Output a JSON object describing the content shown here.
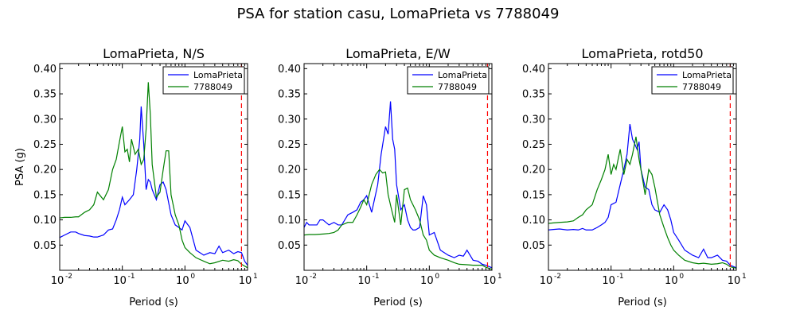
{
  "figure": {
    "title": "PSA for station casu, LomaPrieta vs 7788049"
  },
  "colors": {
    "series_1": "#0000ff",
    "series_2": "#008000",
    "reference_line": "#ff0000",
    "axes": "#000000"
  },
  "chart_data": [
    {
      "type": "line",
      "title": "LomaPrieta, N/S",
      "xlabel": "Period (s)",
      "ylabel": "PSA (g)",
      "xscale": "log",
      "xlim": [
        0.01,
        10
      ],
      "ylim": [
        0.0,
        0.41
      ],
      "xticks": [
        0.01,
        0.1,
        1,
        10
      ],
      "xtick_labels": [
        [
          "10",
          "-2"
        ],
        [
          "10",
          "-1"
        ],
        [
          "10",
          "0"
        ],
        [
          "10",
          "1"
        ]
      ],
      "yticks": [
        0.05,
        0.1,
        0.15,
        0.2,
        0.25,
        0.3,
        0.35,
        0.4
      ],
      "ytick_labels": [
        "0.05",
        "0.10",
        "0.15",
        "0.20",
        "0.25",
        "0.30",
        "0.35",
        "0.40"
      ],
      "legend_position": "top-right",
      "reference_x": 8.0,
      "series": [
        {
          "name": "LomaPrieta",
          "x": [
            0.01,
            0.012,
            0.015,
            0.018,
            0.02,
            0.025,
            0.03,
            0.035,
            0.04,
            0.05,
            0.06,
            0.07,
            0.08,
            0.09,
            0.1,
            0.11,
            0.13,
            0.15,
            0.17,
            0.19,
            0.2,
            0.22,
            0.24,
            0.26,
            0.28,
            0.3,
            0.35,
            0.4,
            0.45,
            0.5,
            0.6,
            0.7,
            0.8,
            0.9,
            1.0,
            1.2,
            1.5,
            2.0,
            2.5,
            3.0,
            3.5,
            4.0,
            5.0,
            6.0,
            7.0,
            8.0,
            9.0,
            10.0
          ],
          "values": [
            0.065,
            0.07,
            0.076,
            0.076,
            0.073,
            0.069,
            0.068,
            0.066,
            0.066,
            0.07,
            0.08,
            0.082,
            0.1,
            0.12,
            0.145,
            0.13,
            0.14,
            0.15,
            0.2,
            0.26,
            0.325,
            0.25,
            0.16,
            0.18,
            0.175,
            0.16,
            0.14,
            0.17,
            0.175,
            0.16,
            0.11,
            0.09,
            0.085,
            0.08,
            0.098,
            0.085,
            0.04,
            0.03,
            0.035,
            0.033,
            0.048,
            0.035,
            0.04,
            0.033,
            0.037,
            0.035,
            0.018,
            0.01
          ]
        },
        {
          "name": "7788049",
          "x": [
            0.01,
            0.012,
            0.015,
            0.018,
            0.02,
            0.025,
            0.03,
            0.035,
            0.04,
            0.05,
            0.06,
            0.07,
            0.08,
            0.09,
            0.1,
            0.11,
            0.12,
            0.13,
            0.14,
            0.16,
            0.18,
            0.2,
            0.22,
            0.24,
            0.26,
            0.28,
            0.3,
            0.35,
            0.4,
            0.45,
            0.5,
            0.55,
            0.6,
            0.7,
            0.8,
            0.9,
            1.0,
            1.2,
            1.5,
            2.0,
            2.5,
            3.0,
            4.0,
            5.0,
            6.0,
            7.0,
            8.0,
            10.0
          ],
          "values": [
            0.104,
            0.105,
            0.105,
            0.106,
            0.106,
            0.115,
            0.12,
            0.13,
            0.155,
            0.14,
            0.16,
            0.2,
            0.22,
            0.255,
            0.285,
            0.235,
            0.24,
            0.215,
            0.26,
            0.23,
            0.24,
            0.21,
            0.22,
            0.28,
            0.373,
            0.31,
            0.21,
            0.145,
            0.155,
            0.2,
            0.237,
            0.237,
            0.15,
            0.11,
            0.09,
            0.06,
            0.045,
            0.035,
            0.025,
            0.018,
            0.013,
            0.015,
            0.02,
            0.018,
            0.021,
            0.019,
            0.012,
            0.005
          ]
        }
      ]
    },
    {
      "type": "line",
      "title": "LomaPrieta, E/W",
      "xlabel": "Period (s)",
      "ylabel": "",
      "xscale": "log",
      "xlim": [
        0.01,
        10
      ],
      "ylim": [
        0.0,
        0.41
      ],
      "xticks": [
        0.01,
        0.1,
        1,
        10
      ],
      "xtick_labels": [
        [
          "10",
          "-2"
        ],
        [
          "10",
          "-1"
        ],
        [
          "10",
          "0"
        ],
        [
          "10",
          "1"
        ]
      ],
      "yticks": [
        0.05,
        0.1,
        0.15,
        0.2,
        0.25,
        0.3,
        0.35,
        0.4
      ],
      "ytick_labels": [
        "0.05",
        "0.10",
        "0.15",
        "0.20",
        "0.25",
        "0.30",
        "0.35",
        "0.40"
      ],
      "legend_position": "top-right",
      "reference_x": 8.5,
      "series": [
        {
          "name": "LomaPrieta",
          "x": [
            0.01,
            0.011,
            0.012,
            0.014,
            0.016,
            0.018,
            0.02,
            0.025,
            0.03,
            0.035,
            0.04,
            0.05,
            0.06,
            0.07,
            0.08,
            0.09,
            0.1,
            0.12,
            0.15,
            0.17,
            0.2,
            0.22,
            0.24,
            0.26,
            0.28,
            0.3,
            0.35,
            0.4,
            0.45,
            0.5,
            0.55,
            0.6,
            0.7,
            0.8,
            0.9,
            1.0,
            1.2,
            1.5,
            2.0,
            2.5,
            3.0,
            3.5,
            4.0,
            5.0,
            6.0,
            7.0,
            8.0,
            10.0
          ],
          "values": [
            0.085,
            0.095,
            0.09,
            0.09,
            0.09,
            0.1,
            0.1,
            0.09,
            0.095,
            0.09,
            0.09,
            0.11,
            0.115,
            0.12,
            0.135,
            0.14,
            0.148,
            0.115,
            0.17,
            0.23,
            0.285,
            0.27,
            0.335,
            0.26,
            0.24,
            0.17,
            0.12,
            0.13,
            0.1,
            0.085,
            0.08,
            0.08,
            0.085,
            0.148,
            0.13,
            0.07,
            0.075,
            0.04,
            0.03,
            0.025,
            0.03,
            0.028,
            0.04,
            0.02,
            0.018,
            0.012,
            0.01,
            0.005
          ]
        },
        {
          "name": "7788049",
          "x": [
            0.01,
            0.012,
            0.015,
            0.02,
            0.025,
            0.03,
            0.035,
            0.04,
            0.05,
            0.06,
            0.07,
            0.08,
            0.09,
            0.1,
            0.12,
            0.14,
            0.16,
            0.18,
            0.2,
            0.22,
            0.25,
            0.28,
            0.3,
            0.35,
            0.4,
            0.45,
            0.5,
            0.6,
            0.7,
            0.8,
            0.9,
            1.0,
            1.2,
            1.5,
            2.0,
            2.5,
            3.0,
            4.0,
            5.0,
            6.0,
            7.0,
            8.0,
            10.0
          ],
          "values": [
            0.07,
            0.071,
            0.071,
            0.072,
            0.073,
            0.075,
            0.08,
            0.09,
            0.095,
            0.095,
            0.11,
            0.125,
            0.14,
            0.13,
            0.17,
            0.19,
            0.2,
            0.193,
            0.195,
            0.15,
            0.12,
            0.095,
            0.15,
            0.09,
            0.16,
            0.163,
            0.14,
            0.12,
            0.1,
            0.07,
            0.06,
            0.04,
            0.03,
            0.025,
            0.02,
            0.015,
            0.012,
            0.011,
            0.01,
            0.01,
            0.01,
            0.006,
            0.002
          ]
        }
      ]
    },
    {
      "type": "line",
      "title": "LomaPrieta, rotd50",
      "xlabel": "Period (s)",
      "ylabel": "",
      "xscale": "log",
      "xlim": [
        0.01,
        10
      ],
      "ylim": [
        0.0,
        0.41
      ],
      "xticks": [
        0.01,
        0.1,
        1,
        10
      ],
      "xtick_labels": [
        [
          "10",
          "-2"
        ],
        [
          "10",
          "-1"
        ],
        [
          "10",
          "0"
        ],
        [
          "10",
          "1"
        ]
      ],
      "yticks": [
        0.05,
        0.1,
        0.15,
        0.2,
        0.25,
        0.3,
        0.35,
        0.4
      ],
      "ytick_labels": [
        "0.05",
        "0.10",
        "0.15",
        "0.20",
        "0.25",
        "0.30",
        "0.35",
        "0.40"
      ],
      "legend_position": "top-right",
      "reference_x": 8.0,
      "series": [
        {
          "name": "LomaPrieta",
          "x": [
            0.01,
            0.012,
            0.015,
            0.02,
            0.025,
            0.03,
            0.035,
            0.04,
            0.05,
            0.06,
            0.07,
            0.08,
            0.09,
            0.1,
            0.12,
            0.14,
            0.16,
            0.18,
            0.2,
            0.22,
            0.24,
            0.26,
            0.28,
            0.3,
            0.35,
            0.4,
            0.45,
            0.5,
            0.6,
            0.7,
            0.8,
            0.9,
            1.0,
            1.2,
            1.5,
            2.0,
            2.5,
            3.0,
            3.5,
            4.0,
            5.0,
            6.0,
            7.0,
            8.0,
            10.0
          ],
          "values": [
            0.08,
            0.081,
            0.082,
            0.08,
            0.081,
            0.08,
            0.083,
            0.08,
            0.08,
            0.085,
            0.09,
            0.095,
            0.105,
            0.13,
            0.135,
            0.17,
            0.2,
            0.23,
            0.29,
            0.26,
            0.25,
            0.24,
            0.255,
            0.2,
            0.165,
            0.16,
            0.13,
            0.12,
            0.115,
            0.13,
            0.12,
            0.1,
            0.075,
            0.06,
            0.04,
            0.03,
            0.025,
            0.042,
            0.025,
            0.025,
            0.03,
            0.02,
            0.018,
            0.01,
            0.005
          ]
        },
        {
          "name": "7788049",
          "x": [
            0.01,
            0.012,
            0.015,
            0.02,
            0.025,
            0.03,
            0.035,
            0.04,
            0.05,
            0.06,
            0.07,
            0.08,
            0.09,
            0.1,
            0.11,
            0.12,
            0.14,
            0.16,
            0.18,
            0.2,
            0.22,
            0.25,
            0.28,
            0.3,
            0.35,
            0.4,
            0.45,
            0.5,
            0.6,
            0.7,
            0.8,
            0.9,
            1.0,
            1.2,
            1.5,
            2.0,
            2.5,
            3.0,
            4.0,
            5.0,
            6.0,
            7.0,
            8.0,
            10.0
          ],
          "values": [
            0.093,
            0.094,
            0.095,
            0.096,
            0.098,
            0.105,
            0.11,
            0.12,
            0.13,
            0.16,
            0.18,
            0.2,
            0.23,
            0.19,
            0.21,
            0.2,
            0.24,
            0.19,
            0.22,
            0.21,
            0.23,
            0.265,
            0.22,
            0.2,
            0.15,
            0.2,
            0.19,
            0.165,
            0.11,
            0.085,
            0.065,
            0.05,
            0.04,
            0.03,
            0.02,
            0.015,
            0.013,
            0.014,
            0.012,
            0.013,
            0.015,
            0.012,
            0.007,
            0.004
          ]
        }
      ]
    }
  ]
}
